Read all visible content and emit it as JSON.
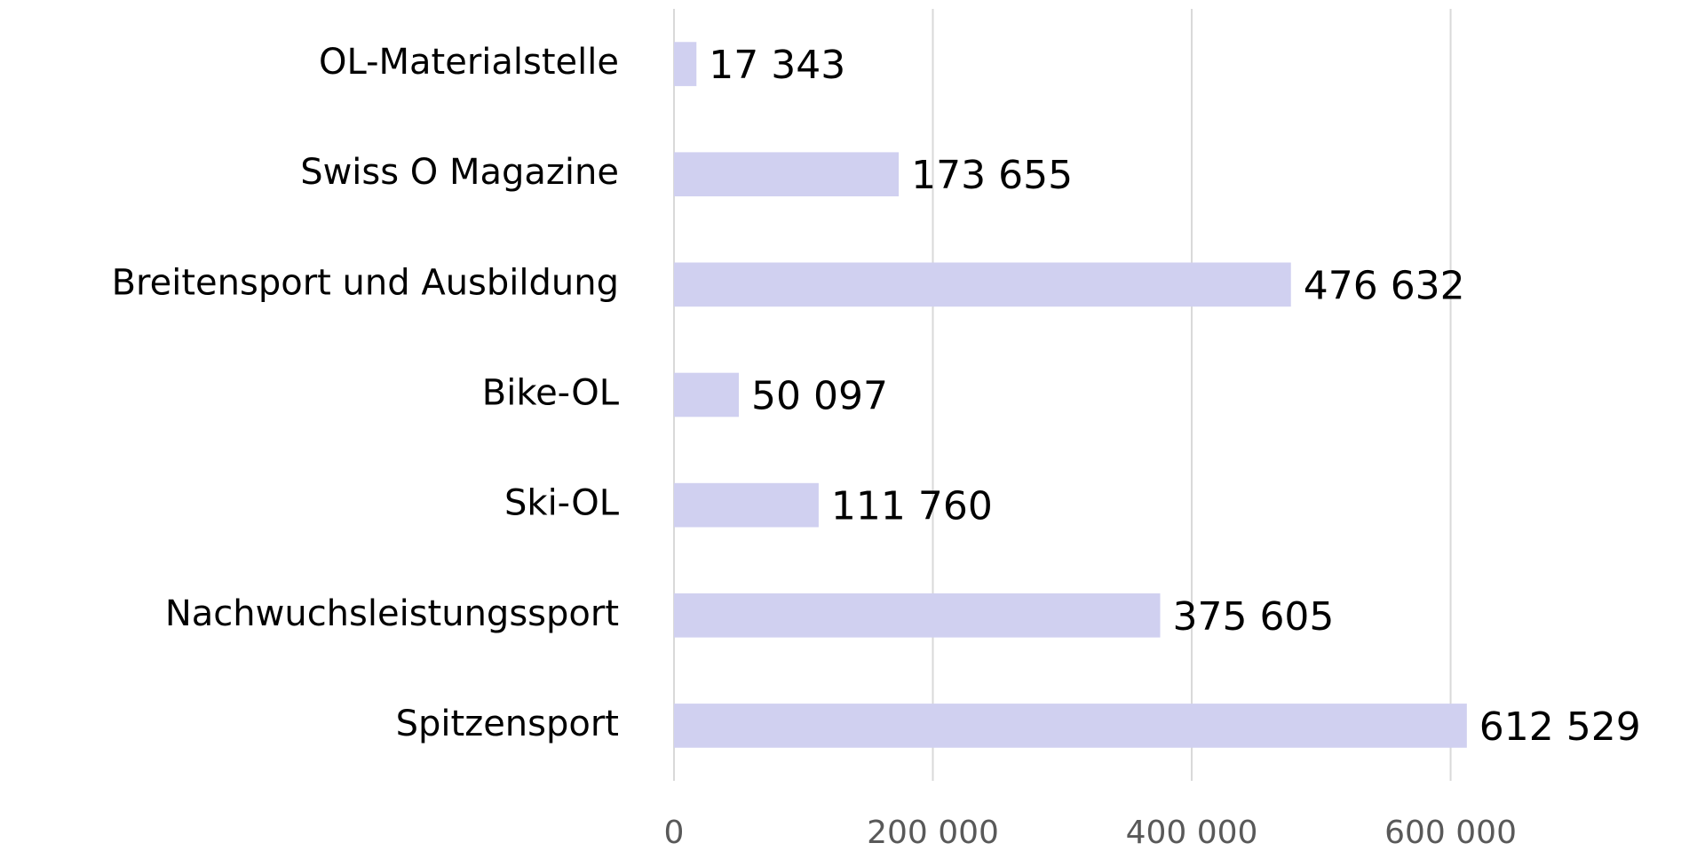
{
  "chart_data": {
    "type": "hbar",
    "categories": [
      "OL-Materialstelle",
      "Swiss O Magazine",
      "Breitensport und Ausbildung",
      "Bike-OL",
      "Ski-OL",
      "Nachwuchsleistungssport",
      "Spitzensport"
    ],
    "values": [
      17343,
      173655,
      476632,
      50097,
      111760,
      375605,
      612529
    ],
    "value_labels": [
      "17 343",
      "173 655",
      "476 632",
      "50 097",
      "111 760",
      "375 605",
      "612 529"
    ],
    "color": "#d0d0f0",
    "xlim": [
      0,
      778000
    ],
    "xticks": [
      0,
      {
        "value": 200000,
        "label": "200 000"
      },
      {
        "value": 400000,
        "label": "400 000"
      },
      {
        "value": 600000,
        "label": "600 000"
      }
    ],
    "grid": true
  }
}
